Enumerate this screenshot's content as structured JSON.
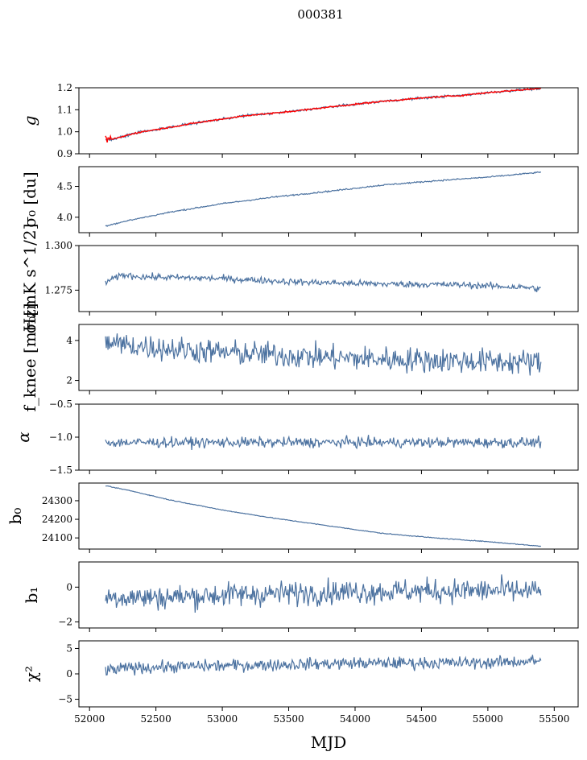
{
  "figure": {
    "title": "000381",
    "xlabel": "MJD"
  },
  "chart_data": [
    {
      "type": "line",
      "ylabel": "g",
      "xlim": [
        51920,
        55680
      ],
      "ylim": [
        0.9,
        1.2
      ],
      "yticks": [
        "0.9",
        "1.0",
        "1.1",
        "1.2"
      ],
      "trend": {
        "x": [
          52120,
          52200,
          52350,
          52600,
          52800,
          53000,
          53200,
          53400,
          53600,
          53800,
          54000,
          54200,
          54400,
          54600,
          54800,
          55000,
          55200,
          55400
        ],
        "y": [
          0.963,
          0.97,
          0.995,
          1.02,
          1.04,
          1.058,
          1.075,
          1.085,
          1.098,
          1.112,
          1.125,
          1.138,
          1.148,
          1.158,
          1.165,
          1.178,
          1.188,
          1.197
        ]
      },
      "noise": 0.004,
      "series": [
        {
          "color": "#4c72a0"
        },
        {
          "color": "#ff0000"
        }
      ]
    },
    {
      "type": "line",
      "ylabel": "σ₀ [du]",
      "xlim": [
        51920,
        55680
      ],
      "ylim": [
        3.75,
        4.82
      ],
      "yticks": [
        "4.0",
        "4.5"
      ],
      "trend": {
        "x": [
          52120,
          52300,
          52600,
          53000,
          53400,
          53800,
          54200,
          54600,
          55000,
          55400
        ],
        "y": [
          3.86,
          3.95,
          4.08,
          4.22,
          4.33,
          4.42,
          4.52,
          4.59,
          4.65,
          4.73
        ]
      },
      "noise": 0.008,
      "series": [
        {
          "color": "#4c72a0"
        }
      ]
    },
    {
      "type": "line",
      "ylabel": "σ₀[mK s^1/2]",
      "xlim": [
        51920,
        55680
      ],
      "ylim": [
        1.263,
        1.3
      ],
      "yticks": [
        "1.275",
        "1.300"
      ],
      "trend": {
        "x": [
          52120,
          52250,
          52400,
          53000,
          53600,
          54200,
          54800,
          55300,
          55400
        ],
        "y": [
          1.2795,
          1.2835,
          1.2825,
          1.2815,
          1.2795,
          1.2785,
          1.278,
          1.2765,
          1.2755
        ]
      },
      "noise": 0.0013,
      "series": [
        {
          "color": "#4c72a0"
        }
      ]
    },
    {
      "type": "line",
      "ylabel": "f_knee [mHz]",
      "xlim": [
        51920,
        55680
      ],
      "ylim": [
        1.5,
        4.8
      ],
      "yticks": [
        "2",
        "4"
      ],
      "trend": {
        "x": [
          52120,
          52300,
          53000,
          54000,
          55000,
          55400
        ],
        "y": [
          3.9,
          3.75,
          3.4,
          3.1,
          2.95,
          2.9
        ]
      },
      "noise": 0.45,
      "series": [
        {
          "color": "#4c72a0"
        }
      ]
    },
    {
      "type": "line",
      "ylabel": "α",
      "xlim": [
        51920,
        55680
      ],
      "ylim": [
        -1.5,
        -0.5
      ],
      "yticks": [
        "−1.5",
        "−1.0",
        "−0.5"
      ],
      "trend": {
        "x": [
          52120,
          55400
        ],
        "y": [
          -1.08,
          -1.08
        ]
      },
      "noise": 0.055,
      "series": [
        {
          "color": "#4c72a0"
        }
      ]
    },
    {
      "type": "line",
      "ylabel": "b₀",
      "xlim": [
        51920,
        55680
      ],
      "ylim": [
        24040,
        24395
      ],
      "yticks": [
        "24100",
        "24200",
        "24300"
      ],
      "trend": {
        "x": [
          52120,
          52300,
          52600,
          53000,
          53400,
          53800,
          54200,
          54600,
          55000,
          55400
        ],
        "y": [
          24380,
          24355,
          24305,
          24250,
          24205,
          24165,
          24125,
          24100,
          24080,
          24055
        ]
      },
      "noise": 1.5,
      "series": [
        {
          "color": "#4c72a0"
        }
      ]
    },
    {
      "type": "line",
      "ylabel": "b₁",
      "xlim": [
        51920,
        55680
      ],
      "ylim": [
        -2.35,
        1.45
      ],
      "yticks": [
        "−2",
        "0"
      ],
      "trend": {
        "x": [
          52120,
          52500,
          53000,
          54000,
          55000,
          55400
        ],
        "y": [
          -0.55,
          -0.6,
          -0.45,
          -0.25,
          -0.2,
          -0.25
        ]
      },
      "noise": 0.5,
      "series": [
        {
          "color": "#4c72a0"
        }
      ]
    },
    {
      "type": "line",
      "ylabel": "χ²",
      "xlim": [
        51920,
        55680
      ],
      "ylim": [
        -6.5,
        6.5
      ],
      "yticks": [
        "−5",
        "0",
        "5"
      ],
      "trend": {
        "x": [
          52120,
          52300,
          53000,
          54000,
          55000,
          55400
        ],
        "y": [
          0.6,
          1.2,
          1.6,
          2.1,
          2.2,
          2.6
        ]
      },
      "noise": 0.85,
      "series": [
        {
          "color": "#4c72a0"
        }
      ]
    }
  ],
  "xticks": [
    "52000",
    "52500",
    "53000",
    "53500",
    "54000",
    "54500",
    "55000",
    "55500"
  ],
  "xtick_values": [
    52000,
    52500,
    53000,
    53500,
    54000,
    54500,
    55000,
    55500
  ]
}
